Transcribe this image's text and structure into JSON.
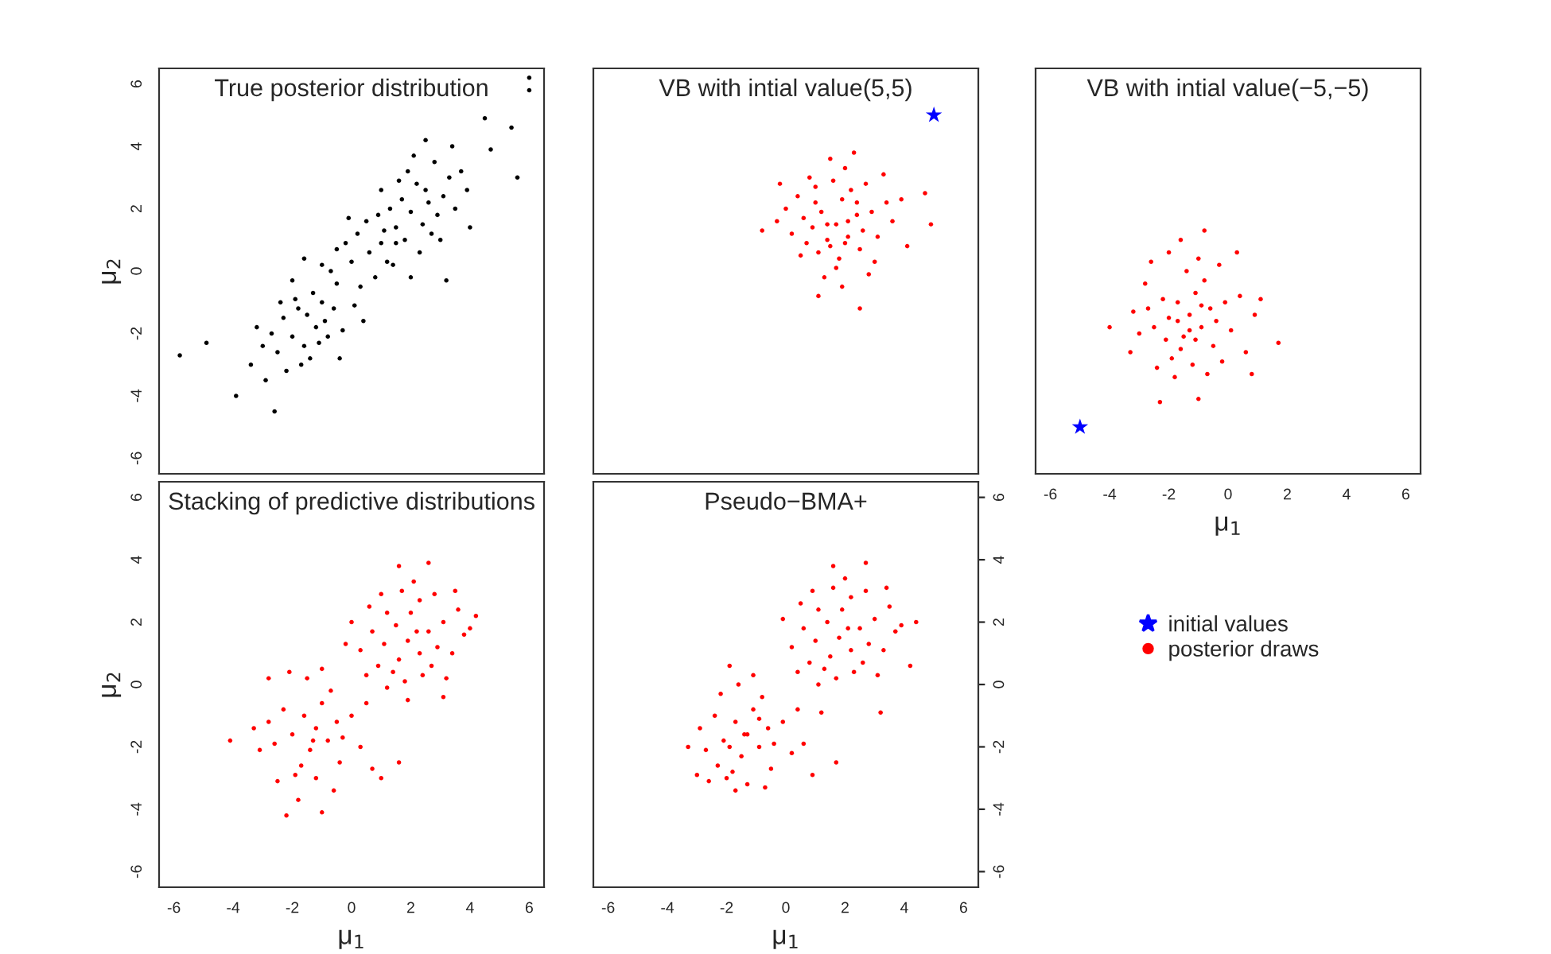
{
  "chart_data": [
    {
      "type": "scatter",
      "title": "True posterior distribution",
      "ylabel": "μ$_{2}$",
      "xlim": [
        -6.5,
        6.5
      ],
      "ylim": [
        -6.5,
        6.5
      ],
      "xticks": [
        -6,
        -4,
        -2,
        0,
        2,
        4,
        6
      ],
      "yticks": [
        -6,
        -4,
        -2,
        0,
        2,
        4,
        6
      ],
      "tick_labels": "y",
      "grid": false,
      "series": [
        {
          "color": "#000000",
          "marker": "circle",
          "x": [
            -1.5,
            -1.2,
            -1.8,
            -2.0,
            -1.0,
            -1.6,
            -2.3,
            -0.9,
            -1.3,
            -2.5,
            -1.9,
            -0.6,
            -1.1,
            -2.7,
            -1.7,
            -0.5,
            -2.2,
            -3.0,
            -1.4,
            -0.8,
            -2.9,
            -3.2,
            -0.3,
            -1.0,
            -2.0,
            -0.4,
            -3.4,
            -2.4,
            -1.6,
            -0.7,
            0.0,
            0.3,
            -0.2,
            0.6,
            0.2,
            0.8,
            0.5,
            -0.5,
            1.0,
            0.1,
            0.9,
            1.2,
            -0.1,
            0.4,
            1.5,
            2.0,
            1.7,
            2.4,
            1.5,
            2.6,
            2.2,
            1.3,
            2.9,
            1.8,
            2.5,
            3.1,
            1.9,
            2.7,
            1.1,
            3.3,
            2.3,
            1.6,
            3.5,
            2.8,
            3.0,
            2.1,
            3.7,
            1.4,
            3.9,
            2.5,
            3.4,
            1.0,
            4.0,
            3.2,
            2.0,
            6.0,
            6.0,
            -5.8,
            -4.9,
            -2.6,
            4.5,
            5.4,
            5.6,
            4.7,
            -3.9
          ],
          "values": [
            -1.4,
            -1.8,
            -1.2,
            -2.1,
            -1.0,
            -2.4,
            -1.5,
            -1.6,
            -0.7,
            -2.6,
            -0.9,
            -1.2,
            -2.3,
            -2.0,
            -3.0,
            -0.4,
            -3.2,
            -2.4,
            -2.8,
            -2.1,
            -3.5,
            -1.8,
            -1.9,
            0.2,
            -0.3,
            -2.8,
            -3.0,
            -1.0,
            0.4,
            0.0,
            0.3,
            -0.5,
            0.9,
            0.6,
            1.2,
            -0.2,
            1.6,
            0.7,
            0.9,
            -1.1,
            1.8,
            0.3,
            1.7,
            -1.6,
            0.9,
            1.9,
            2.3,
            1.5,
            1.4,
            2.2,
            2.8,
            2.0,
            1.8,
            1.0,
            2.6,
            2.4,
            3.2,
            1.2,
            1.3,
            3.0,
            0.6,
            2.9,
            2.0,
            3.5,
            1.0,
            3.7,
            3.2,
            0.2,
            2.6,
            4.2,
            4.0,
            2.6,
            1.4,
            -0.3,
            -0.2,
            6.2,
            5.8,
            -2.7,
            -2.3,
            -4.5,
            4.9,
            4.6,
            3.0,
            3.9,
            -4.0
          ]
        }
      ]
    },
    {
      "type": "scatter",
      "title": "VB with intial value(5,5)",
      "xlim": [
        -6.5,
        6.5
      ],
      "ylim": [
        -6.5,
        6.5
      ],
      "xticks": [
        -6,
        -4,
        -2,
        0,
        2,
        4,
        6
      ],
      "yticks": [
        -6,
        -4,
        -2,
        0,
        2,
        4,
        6
      ],
      "tick_labels": false,
      "grid": false,
      "series": [
        {
          "color": "#ff0000",
          "marker": "circle",
          "x": [
            1.7,
            1.2,
            2.1,
            1.5,
            2.4,
            0.9,
            1.9,
            2.6,
            1.0,
            1.4,
            2.2,
            0.6,
            2.9,
            1.8,
            1.1,
            2.5,
            0.4,
            3.1,
            1.6,
            2.0,
            0.2,
            3.4,
            1.3,
            2.7,
            0.5,
            3.0,
            1.9,
            0.0,
            2.3,
            1.5,
            3.6,
            -0.3,
            -0.8,
            0.8,
            2.8,
            1.1,
            2.5,
            3.9,
            4.1,
            4.9,
            4.7,
            -0.2,
            3.3,
            1.7,
            2.1,
            1.4,
            0.7,
            2.4,
            1.0,
            2.0
          ],
          "values": [
            1.5,
            1.9,
            1.1,
            0.8,
            1.8,
            1.4,
            2.3,
            1.3,
            2.2,
            1.0,
            2.6,
            1.7,
            1.9,
            0.4,
            0.6,
            0.7,
            2.4,
            1.1,
            2.9,
            3.3,
            1.2,
            2.2,
            -0.2,
            2.8,
            0.5,
            0.3,
            -0.5,
            2.0,
            3.8,
            3.6,
            1.6,
            1.6,
            1.3,
            3.0,
            -0.1,
            -0.8,
            -1.2,
            2.3,
            0.8,
            1.5,
            2.5,
            2.8,
            3.1,
            0.1,
            1.6,
            1.5,
            0.9,
            2.2,
            2.7,
            0.9
          ]
        },
        {
          "color": "#0000ff",
          "marker": "star",
          "x": [
            5
          ],
          "values": [
            5
          ]
        }
      ]
    },
    {
      "type": "scatter",
      "title": "VB with intial value(−5,−5)",
      "xlabel": "μ$_{1}$",
      "xlim": [
        -6.5,
        6.5
      ],
      "ylim": [
        -6.5,
        6.5
      ],
      "xticks": [
        -6,
        -4,
        -2,
        0,
        2,
        4,
        6
      ],
      "yticks": [
        -6,
        -4,
        -2,
        0,
        2,
        4,
        6
      ],
      "tick_labels": "x",
      "grid": false,
      "legend": "bottom",
      "series": [
        {
          "name": "initial values",
          "color": "#0000ff",
          "marker": "star",
          "x": [
            -5
          ],
          "values": [
            -5
          ]
        },
        {
          "name": "posterior draws",
          "color": "#ff0000",
          "marker": "circle",
          "x": [
            -1.3,
            -1.7,
            -0.9,
            -1.5,
            -0.6,
            -2.0,
            -1.1,
            -0.4,
            -2.2,
            -1.6,
            -0.8,
            -2.5,
            -0.1,
            -1.2,
            -1.9,
            -0.5,
            -2.7,
            0.1,
            -1.4,
            -1.0,
            -3.0,
            0.4,
            -1.8,
            -0.3,
            -2.4,
            0.6,
            -3.2,
            -2.0,
            0.9,
            -0.7,
            -2.8,
            1.1,
            -1.6,
            -0.8,
            -4.0,
            1.7,
            -2.3,
            -1.0,
            0.8,
            -3.3,
            -1.3,
            -1.7,
            -0.9,
            -1.1,
            -2.1,
            -0.2,
            0.3,
            -2.6
          ],
          "values": [
            -1.4,
            -1.0,
            -1.8,
            -2.1,
            -1.2,
            -1.5,
            -0.7,
            -1.6,
            -0.9,
            -2.5,
            -0.3,
            -1.8,
            -1.0,
            -3.0,
            -2.8,
            -2.4,
            -1.2,
            -1.9,
            0.0,
            0.4,
            -2.0,
            -0.8,
            -3.4,
            0.2,
            -3.1,
            -2.6,
            -1.3,
            0.6,
            -1.4,
            -3.3,
            -0.4,
            -0.9,
            1.0,
            1.3,
            -1.8,
            -2.3,
            -4.2,
            -4.1,
            -3.3,
            -2.6,
            -1.9,
            -1.6,
            -1.1,
            -2.2,
            -2.2,
            -2.9,
            0.6,
            0.3
          ]
        }
      ]
    },
    {
      "type": "scatter",
      "title": "Stacking of predictive distributions",
      "xlabel": "μ$_{1}$",
      "ylabel": "μ$_{2}$",
      "xlim": [
        -6.5,
        6.5
      ],
      "ylim": [
        -6.5,
        6.5
      ],
      "xticks": [
        -6,
        -4,
        -2,
        0,
        2,
        4,
        6
      ],
      "yticks": [
        -6,
        -4,
        -2,
        0,
        2,
        4,
        6
      ],
      "grid": false,
      "series": [
        {
          "color": "#ff0000",
          "marker": "circle",
          "x": [
            -1.2,
            -1.6,
            -0.8,
            -1.4,
            -0.5,
            -2.0,
            -1.0,
            -0.3,
            -2.3,
            -1.7,
            -0.7,
            -2.6,
            0.0,
            -1.2,
            -1.9,
            -0.4,
            -2.8,
            0.3,
            -1.5,
            -1.0,
            -3.1,
            0.5,
            -1.8,
            -2.5,
            0.7,
            -3.3,
            -2.1,
            -0.6,
            -2.8,
            -1.3,
            1.9,
            1.5,
            2.3,
            1.6,
            2.6,
            1.1,
            2.0,
            2.9,
            1.2,
            1.4,
            2.3,
            0.7,
            3.1,
            1.8,
            0.9,
            2.7,
            0.6,
            3.4,
            1.7,
            2.1,
            0.3,
            3.6,
            1.2,
            2.8,
            0.5,
            3.2,
            0.0,
            3.8,
            -0.2,
            3.5,
            1.0,
            2.4,
            4.0,
            2.2,
            -4.1,
            -2.2,
            -1.0,
            1.6,
            4.2,
            2.6,
            1.6,
            3.1,
            1.9,
            1.0
          ],
          "values": [
            -1.4,
            -1.0,
            -1.8,
            -2.1,
            -1.2,
            -1.6,
            -0.6,
            -1.7,
            -0.8,
            -2.6,
            -0.2,
            -1.9,
            -1.0,
            -3.0,
            -2.9,
            -2.5,
            -1.2,
            -2.0,
            0.2,
            0.5,
            -2.1,
            -0.6,
            -3.7,
            -3.1,
            -2.7,
            -1.4,
            0.4,
            -3.4,
            0.2,
            -1.8,
            1.4,
            1.9,
            1.0,
            0.8,
            1.7,
            1.3,
            2.3,
            1.2,
            2.3,
            0.4,
            2.7,
            1.7,
            2.0,
            0.1,
            0.6,
            0.6,
            2.5,
            1.0,
            3.0,
            3.3,
            1.1,
            2.4,
            -0.1,
            2.9,
            0.3,
            0.2,
            2.0,
            1.6,
            1.3,
            3.0,
            2.9,
            0.3,
            1.8,
            1.7,
            -1.8,
            -4.2,
            -4.1,
            -2.5,
            2.2,
            3.9,
            3.8,
            -0.4,
            -0.5,
            -3.0
          ]
        }
      ]
    },
    {
      "type": "scatter",
      "title": "Pseudo−BMA+",
      "xlabel": "μ$_{1}$",
      "xlim": [
        -6.5,
        6.5
      ],
      "ylim": [
        -6.5,
        6.5
      ],
      "xticks": [
        -6,
        -4,
        -2,
        0,
        2,
        4,
        6
      ],
      "yticks": [
        -6,
        -4,
        -2,
        0,
        2,
        4,
        6
      ],
      "grid": false,
      "series": [
        {
          "color": "#ff0000",
          "marker": "circle",
          "x": [
            -1.3,
            -1.7,
            -0.9,
            -1.5,
            -0.6,
            -2.1,
            -1.1,
            -0.4,
            -2.4,
            -1.8,
            -0.8,
            -2.7,
            -0.1,
            -1.3,
            -2.0,
            -0.5,
            -2.9,
            0.2,
            -1.6,
            -1.1,
            -3.0,
            0.4,
            -2.6,
            0.6,
            -2.2,
            -0.7,
            -1.4,
            -0.9,
            -1.9,
            -2.3,
            1.8,
            1.4,
            2.2,
            1.5,
            2.5,
            1.0,
            1.9,
            2.8,
            1.1,
            1.3,
            2.2,
            0.6,
            3.0,
            1.7,
            0.8,
            2.6,
            0.5,
            3.3,
            1.6,
            2.0,
            0.2,
            3.5,
            1.1,
            2.7,
            0.4,
            3.1,
            -0.1,
            3.7,
            3.4,
            0.9,
            2.3,
            3.9,
            2.1,
            1.2,
            -3.3,
            3.2,
            1.7,
            4.4,
            2.7,
            1.6,
            -1.7,
            0.9,
            -1.9,
            4.2
          ],
          "values": [
            -1.6,
            -1.2,
            -2.0,
            -2.3,
            -1.4,
            -1.8,
            -0.8,
            -1.9,
            -1.0,
            -2.8,
            -0.4,
            -2.1,
            -1.2,
            -3.2,
            -3.0,
            -2.7,
            -1.4,
            -2.2,
            0.0,
            0.3,
            -2.9,
            -0.8,
            -3.1,
            -1.9,
            -0.3,
            -3.3,
            -1.6,
            -1.1,
            -2.0,
            -2.6,
            1.5,
            2.0,
            1.1,
            0.9,
            1.8,
            1.4,
            2.4,
            1.3,
            2.4,
            0.5,
            2.8,
            1.8,
            2.1,
            0.2,
            0.7,
            0.7,
            2.6,
            1.1,
            3.1,
            3.4,
            1.2,
            2.5,
            0.0,
            3.0,
            0.4,
            0.3,
            2.1,
            1.7,
            3.1,
            3.0,
            0.4,
            1.9,
            1.8,
            -0.9,
            -2.0,
            -0.9,
            -2.5,
            2.0,
            3.9,
            3.8,
            -3.4,
            -2.9,
            0.6,
            0.6
          ]
        }
      ]
    }
  ]
}
